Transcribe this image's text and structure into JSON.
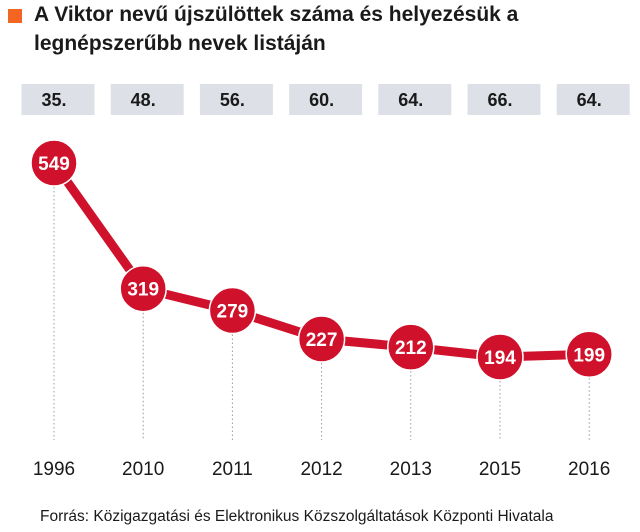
{
  "title": "A Viktor nevű újszülöttek száma és helyezésük a legnépszerűbb nevek listáján",
  "source": "Forrás: Közigazgatási és Elektronikus Közszolgáltatások Központi Hivatala",
  "colors": {
    "accent": "#d0112b",
    "title_marker": "#f26522",
    "rank_box": "#dde1e7",
    "text": "#1a1a1a",
    "value_text": "#ffffff",
    "guide_line": "#9a9a9a"
  },
  "chart_data": {
    "type": "line",
    "title": "A Viktor nevű újszülöttek száma és helyezésük a legnépszerűbb nevek listáján",
    "categories": [
      "1996",
      "2010",
      "2011",
      "2012",
      "2013",
      "2015",
      "2016"
    ],
    "series": [
      {
        "values": [
          549,
          319,
          279,
          227,
          212,
          194,
          199
        ]
      }
    ],
    "ranks": [
      "35.",
      "48.",
      "56.",
      "60.",
      "64.",
      "66.",
      "64."
    ],
    "xlabel": "",
    "ylabel": "",
    "grid": false,
    "legend": "none",
    "data_labels": true
  }
}
